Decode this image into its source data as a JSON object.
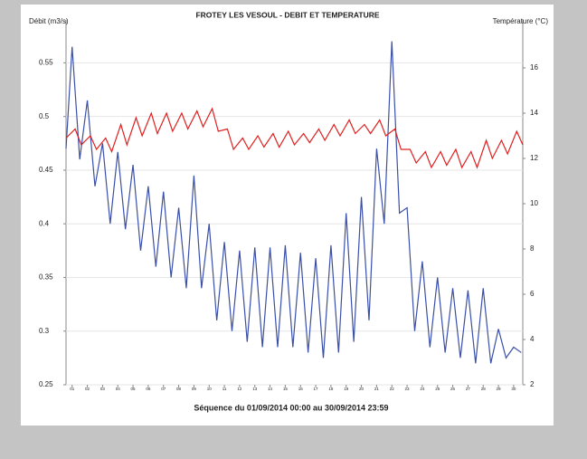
{
  "chart_data": {
    "type": "line",
    "title": "FROTEY LES VESOUL - DEBIT ET TEMPERATURE",
    "ylabel": "Débit (m3/s)",
    "y2label": "Température (°C)",
    "footer": "Séquence du  01/09/2014 00:00  au  30/09/2014 23:59",
    "xlim": [
      0.6,
      30.6
    ],
    "xticks": [
      {
        "value": 1,
        "label": "01"
      },
      {
        "value": 2,
        "label": "02"
      },
      {
        "value": 3,
        "label": "03"
      },
      {
        "value": 4,
        "label": "04"
      },
      {
        "value": 5,
        "label": "05"
      },
      {
        "value": 6,
        "label": "06"
      },
      {
        "value": 7,
        "label": "07"
      },
      {
        "value": 8,
        "label": "08"
      },
      {
        "value": 9,
        "label": "09"
      },
      10,
      11,
      12,
      13,
      14,
      15,
      16,
      17,
      18,
      19,
      20,
      21,
      22,
      23,
      24,
      25,
      26,
      27,
      28,
      29,
      30
    ],
    "ylim": [
      0.25,
      0.59
    ],
    "yticks": [
      0.25,
      0.3,
      0.35,
      0.4,
      0.45,
      0.5,
      0.55
    ],
    "y2lim": [
      2,
      18.12
    ],
    "y2ticks": [
      2,
      4,
      6,
      8,
      10,
      12,
      14,
      16
    ],
    "grid": true,
    "series": [
      {
        "name": "Débit",
        "color": "#3a4fa8",
        "x": [
          0.6,
          1,
          1.5,
          2,
          2.5,
          3,
          3.5,
          4,
          4.5,
          5,
          5.5,
          6,
          6.5,
          7,
          7.5,
          8,
          8.5,
          9,
          9.5,
          10,
          10.5,
          11,
          11.5,
          12,
          12.5,
          13,
          13.5,
          14,
          14.5,
          15,
          15.5,
          16,
          16.5,
          17,
          17.5,
          18,
          18.5,
          19,
          19.5,
          20,
          20.5,
          21,
          21.5,
          22,
          22.5,
          23,
          23.5,
          24,
          24.5,
          25,
          25.5,
          26,
          26.5,
          27,
          27.5,
          28,
          28.5,
          29,
          29.5,
          30,
          30.5
        ],
        "values": [
          0.47,
          0.565,
          0.46,
          0.515,
          0.435,
          0.475,
          0.4,
          0.467,
          0.395,
          0.455,
          0.375,
          0.435,
          0.36,
          0.43,
          0.35,
          0.415,
          0.34,
          0.445,
          0.34,
          0.4,
          0.31,
          0.383,
          0.3,
          0.375,
          0.29,
          0.378,
          0.285,
          0.378,
          0.285,
          0.38,
          0.285,
          0.373,
          0.28,
          0.368,
          0.275,
          0.38,
          0.28,
          0.41,
          0.29,
          0.425,
          0.31,
          0.47,
          0.4,
          0.57,
          0.41,
          0.415,
          0.3,
          0.365,
          0.285,
          0.35,
          0.28,
          0.34,
          0.275,
          0.338,
          0.27,
          0.34,
          0.27,
          0.302,
          0.275,
          0.285,
          0.28
        ]
      },
      {
        "name": "Température",
        "color": "#e02020",
        "axis": "y2",
        "x": [
          0.6,
          1.2,
          1.6,
          2.2,
          2.6,
          3.2,
          3.6,
          4.2,
          4.6,
          5.2,
          5.6,
          6.2,
          6.6,
          7.2,
          7.6,
          8.2,
          8.6,
          9.2,
          9.6,
          10.2,
          10.6,
          11.2,
          11.6,
          12.2,
          12.6,
          13.2,
          13.6,
          14.2,
          14.6,
          15.2,
          15.6,
          16.2,
          16.6,
          17.2,
          17.6,
          18.2,
          18.6,
          19.2,
          19.6,
          20.2,
          20.6,
          21.2,
          21.6,
          22.2,
          22.6,
          23.2,
          23.6,
          24.2,
          24.6,
          25.2,
          25.6,
          26.2,
          26.6,
          27.2,
          27.6,
          28.2,
          28.6,
          29.2,
          29.6,
          30.2,
          30.6
        ],
        "values": [
          12.9,
          13.3,
          12.6,
          13.0,
          12.4,
          12.9,
          12.3,
          13.5,
          12.6,
          13.8,
          13.0,
          14.0,
          13.1,
          14.0,
          13.2,
          14.0,
          13.3,
          14.1,
          13.4,
          14.2,
          13.2,
          13.3,
          12.4,
          12.9,
          12.4,
          13.0,
          12.5,
          13.1,
          12.5,
          13.2,
          12.6,
          13.1,
          12.7,
          13.3,
          12.8,
          13.5,
          13.0,
          13.7,
          13.1,
          13.5,
          13.1,
          13.7,
          13.0,
          13.3,
          12.4,
          12.4,
          11.8,
          12.3,
          11.6,
          12.3,
          11.7,
          12.4,
          11.6,
          12.3,
          11.6,
          12.8,
          12.0,
          12.8,
          12.2,
          13.2,
          12.6
        ]
      }
    ]
  }
}
